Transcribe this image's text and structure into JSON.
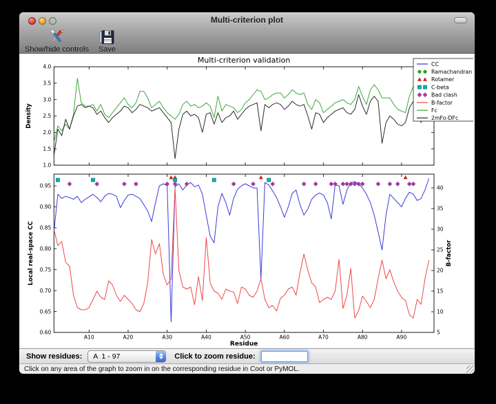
{
  "window": {
    "title": "Multi-criterion plot"
  },
  "toolbar": {
    "buttons": [
      {
        "label": "Show/hide controls",
        "icon": "tools-icon"
      },
      {
        "label": "Save",
        "icon": "save-icon"
      }
    ]
  },
  "controls": {
    "show_residues_label": "Show residues:",
    "dropdown_value": "A  1 - 97",
    "zoom_label": "Click to zoom residue:",
    "zoom_input_value": ""
  },
  "status_bar": {
    "text": "Click on any area of the graph to zoom in on the corresponding residue in Coot or PyMOL."
  },
  "chart_data": [
    {
      "type": "line",
      "title": "Multi-criterion validation",
      "ylabel": "Density",
      "ylim": [
        1.0,
        4.0
      ],
      "yticks": [
        1.0,
        1.5,
        2.0,
        2.5,
        3.0,
        3.5,
        4.0
      ],
      "x_start": 1,
      "x_end": 97,
      "xtick_residues": [
        10,
        20,
        30,
        40,
        50,
        60,
        70,
        80,
        90
      ],
      "xtick_labels": [
        "A10",
        "A20",
        "A30",
        "A40",
        "A50",
        "A60",
        "A70",
        "A80",
        "A90"
      ],
      "grid": false,
      "series": [
        {
          "name": "Fc",
          "color": "#3aa83a",
          "values": [
            1.7,
            2.2,
            2.05,
            2.25,
            2.1,
            2.55,
            3.65,
            2.9,
            2.8,
            2.8,
            2.85,
            2.65,
            2.85,
            2.55,
            2.45,
            2.6,
            2.75,
            2.9,
            3.05,
            2.85,
            2.75,
            2.9,
            3.25,
            3.25,
            3.05,
            2.75,
            2.85,
            2.95,
            2.75,
            2.6,
            2.5,
            2.4,
            2.55,
            2.85,
            2.95,
            2.8,
            2.85,
            2.75,
            2.8,
            2.9,
            2.8,
            2.45,
            3.1,
            2.65,
            2.85,
            2.8,
            2.75,
            2.6,
            2.7,
            2.9,
            3.0,
            3.15,
            3.3,
            3.25,
            3.0,
            3.05,
            3.15,
            3.2,
            3.2,
            3.05,
            3.15,
            3.3,
            3.2,
            3.15,
            3.2,
            2.85,
            2.7,
            3.0,
            2.9,
            2.6,
            2.7,
            2.8,
            2.9,
            2.95,
            3.0,
            2.9,
            2.85,
            3.0,
            3.4,
            3.1,
            2.85,
            3.3,
            3.45,
            3.3,
            3.05,
            3.05,
            3.05,
            2.85,
            2.7,
            2.65,
            2.6,
            3.1,
            3.4,
            2.85,
            2.6,
            2.9,
            3.5
          ]
        },
        {
          "name": "2mFo-DFc",
          "color": "#2a2a2a",
          "values": [
            1.3,
            2.1,
            1.9,
            2.4,
            2.1,
            2.5,
            2.8,
            2.85,
            2.75,
            2.8,
            2.75,
            2.55,
            2.65,
            2.45,
            2.3,
            2.45,
            2.55,
            2.65,
            2.8,
            2.75,
            2.6,
            2.7,
            2.85,
            2.8,
            2.75,
            2.65,
            2.7,
            2.75,
            2.6,
            2.45,
            2.3,
            1.2,
            2.1,
            2.55,
            2.65,
            2.5,
            2.55,
            2.45,
            2.0,
            2.55,
            2.6,
            2.25,
            2.6,
            2.3,
            2.45,
            2.5,
            2.65,
            2.4,
            2.55,
            2.7,
            2.8,
            2.85,
            2.9,
            2.05,
            2.85,
            2.75,
            2.85,
            2.9,
            2.85,
            2.7,
            2.8,
            2.95,
            2.85,
            2.8,
            2.85,
            2.5,
            2.1,
            2.6,
            2.55,
            2.3,
            2.45,
            2.55,
            2.65,
            2.7,
            2.75,
            2.6,
            2.55,
            2.7,
            3.15,
            2.8,
            2.55,
            2.95,
            3.1,
            2.95,
            1.67,
            2.3,
            2.5,
            2.4,
            2.25,
            2.2,
            2.3,
            2.75,
            2.95,
            2.5,
            2.3,
            2.6,
            2.95
          ]
        }
      ]
    },
    {
      "type": "line+scatter",
      "xlabel": "Residue",
      "ylabel_left": "Local real-space CC",
      "ylabel_right": "B-factor",
      "ylim_left": [
        0.6,
        0.978
      ],
      "ylim_right": [
        5,
        43.33
      ],
      "yticks_left": [
        0.6,
        0.65,
        0.7,
        0.75,
        0.8,
        0.85,
        0.9,
        0.95
      ],
      "yticks_right": [
        5,
        10,
        15,
        20,
        25,
        30,
        35,
        40
      ],
      "x_start": 1,
      "x_end": 97,
      "xtick_residues": [
        10,
        20,
        30,
        40,
        50,
        60,
        70,
        80,
        90
      ],
      "xtick_labels": [
        "A10",
        "A20",
        "A30",
        "A40",
        "A50",
        "A60",
        "A70",
        "A80",
        "A90"
      ],
      "grid": false,
      "series": [
        {
          "name": "CC",
          "axis": "left",
          "color": "#3a3ad9",
          "values": [
            0.84,
            0.93,
            0.92,
            0.925,
            0.922,
            0.918,
            0.925,
            0.91,
            0.918,
            0.924,
            0.93,
            0.922,
            0.912,
            0.925,
            0.932,
            0.93,
            0.925,
            0.898,
            0.915,
            0.928,
            0.93,
            0.925,
            0.92,
            0.905,
            0.89,
            0.865,
            0.91,
            0.95,
            0.955,
            0.95,
            0.625,
            0.948,
            0.955,
            0.94,
            0.952,
            0.958,
            0.948,
            0.952,
            0.93,
            0.88,
            0.83,
            0.814,
            0.9,
            0.932,
            0.91,
            0.88,
            0.92,
            0.942,
            0.95,
            0.955,
            0.95,
            0.945,
            0.945,
            0.728,
            0.958,
            0.952,
            0.938,
            0.922,
            0.9,
            0.875,
            0.9,
            0.932,
            0.94,
            0.905,
            0.88,
            0.895,
            0.918,
            0.928,
            0.933,
            0.928,
            0.91,
            0.871,
            0.952,
            0.95,
            0.906,
            0.94,
            0.958,
            0.96,
            0.955,
            0.945,
            0.93,
            0.91,
            0.88,
            0.84,
            0.797,
            0.88,
            0.93,
            0.92,
            0.91,
            0.9,
            0.92,
            0.935,
            0.93,
            0.915,
            0.92,
            0.94,
            0.968
          ]
        },
        {
          "name": "B-factor",
          "axis": "right",
          "color": "#ee4848",
          "values": [
            30,
            26,
            27,
            22,
            21,
            14,
            11,
            10.5,
            10.5,
            11,
            13,
            15,
            13.5,
            13,
            17.5,
            16.5,
            14,
            12.5,
            14,
            13,
            12,
            10.5,
            10,
            12,
            17,
            27.5,
            24,
            26.5,
            19,
            16.5,
            18,
            40,
            20,
            16,
            15.5,
            16,
            11.7,
            18.5,
            12.7,
            28,
            17,
            15,
            14.5,
            13,
            15.5,
            15,
            14.8,
            12,
            16,
            15.5,
            14,
            13.5,
            15,
            18,
            13,
            11,
            11.5,
            10.2,
            13.3,
            14,
            15.5,
            16,
            14,
            19.5,
            24,
            20,
            17,
            16,
            12.2,
            13,
            13.5,
            13,
            15,
            22.7,
            10.8,
            14,
            20.5,
            8.5,
            10.2,
            13.8,
            12.5,
            11,
            13,
            18,
            22.5,
            18,
            20.2,
            17.2,
            15,
            13.5,
            12.7,
            9.3,
            8.5,
            13,
            11.8,
            18,
            22.5
          ]
        }
      ],
      "markers": [
        {
          "name": "Ramachandran",
          "shape": "circle",
          "color": "#22a022",
          "y_cc": 0.9545,
          "residues": []
        },
        {
          "name": "Rotamer",
          "shape": "triangle",
          "color": "#cc2418",
          "y_cc": 0.97,
          "residues": [
            31,
            32,
            54,
            91
          ]
        },
        {
          "name": "C-beta",
          "shape": "square",
          "color": "#00b2b2",
          "y_cc": 0.964,
          "residues": [
            2,
            11,
            32,
            42,
            56
          ]
        },
        {
          "name": "Bad clash",
          "shape": "diamond",
          "color": "#a03ca0",
          "y_cc": 0.9545,
          "residues": [
            5,
            12,
            19,
            22,
            30,
            32,
            35,
            47,
            52,
            57,
            65,
            68,
            72,
            73,
            75,
            76,
            77,
            78,
            79,
            80,
            84,
            87,
            89,
            92,
            93
          ]
        }
      ],
      "legend": {
        "position": "upper right",
        "entries": [
          {
            "label": "CC",
            "type": "line",
            "color": "#3a3ad9"
          },
          {
            "label": "Ramachandran",
            "type": "circle",
            "color": "#22a022"
          },
          {
            "label": "Rotamer",
            "type": "triangle",
            "color": "#cc2418"
          },
          {
            "label": "C-beta",
            "type": "square",
            "color": "#00b2b2"
          },
          {
            "label": "Bad clash",
            "type": "diamond",
            "color": "#a03ca0"
          },
          {
            "label": "B-factor",
            "type": "line",
            "color": "#ee4848"
          },
          {
            "label": "Fc",
            "type": "line",
            "color": "#3aa83a"
          },
          {
            "label": "2mFo-DFc",
            "type": "line",
            "color": "#2a2a2a"
          }
        ]
      }
    }
  ]
}
